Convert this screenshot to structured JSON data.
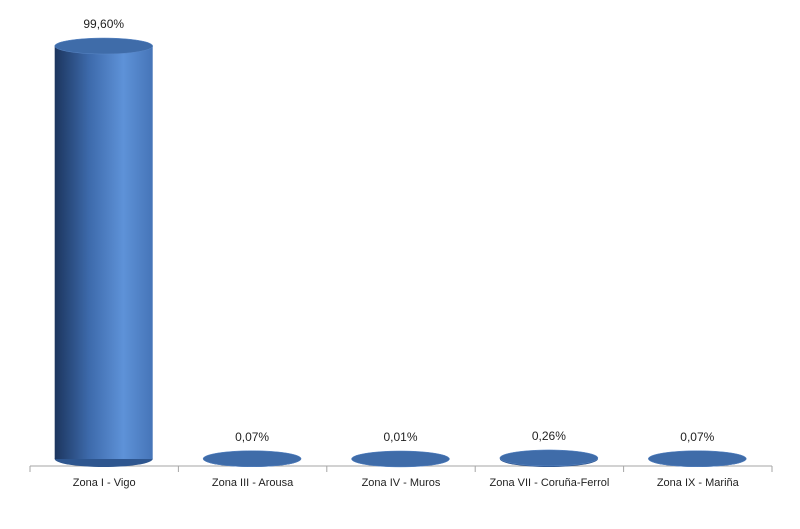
{
  "chart_data": {
    "type": "bar",
    "categories": [
      "Zona I - Vigo",
      "Zona III - Arousa",
      "Zona IV - Muros",
      "Zona VII - Coruña-Ferrol",
      "Zona IX - Mariña"
    ],
    "values": [
      99.6,
      0.07,
      0.01,
      0.26,
      0.07
    ],
    "value_labels": [
      "99,60%",
      "0,07%",
      "0,01%",
      "0,26%",
      "0,07%"
    ],
    "color": "#4a7cc0"
  }
}
